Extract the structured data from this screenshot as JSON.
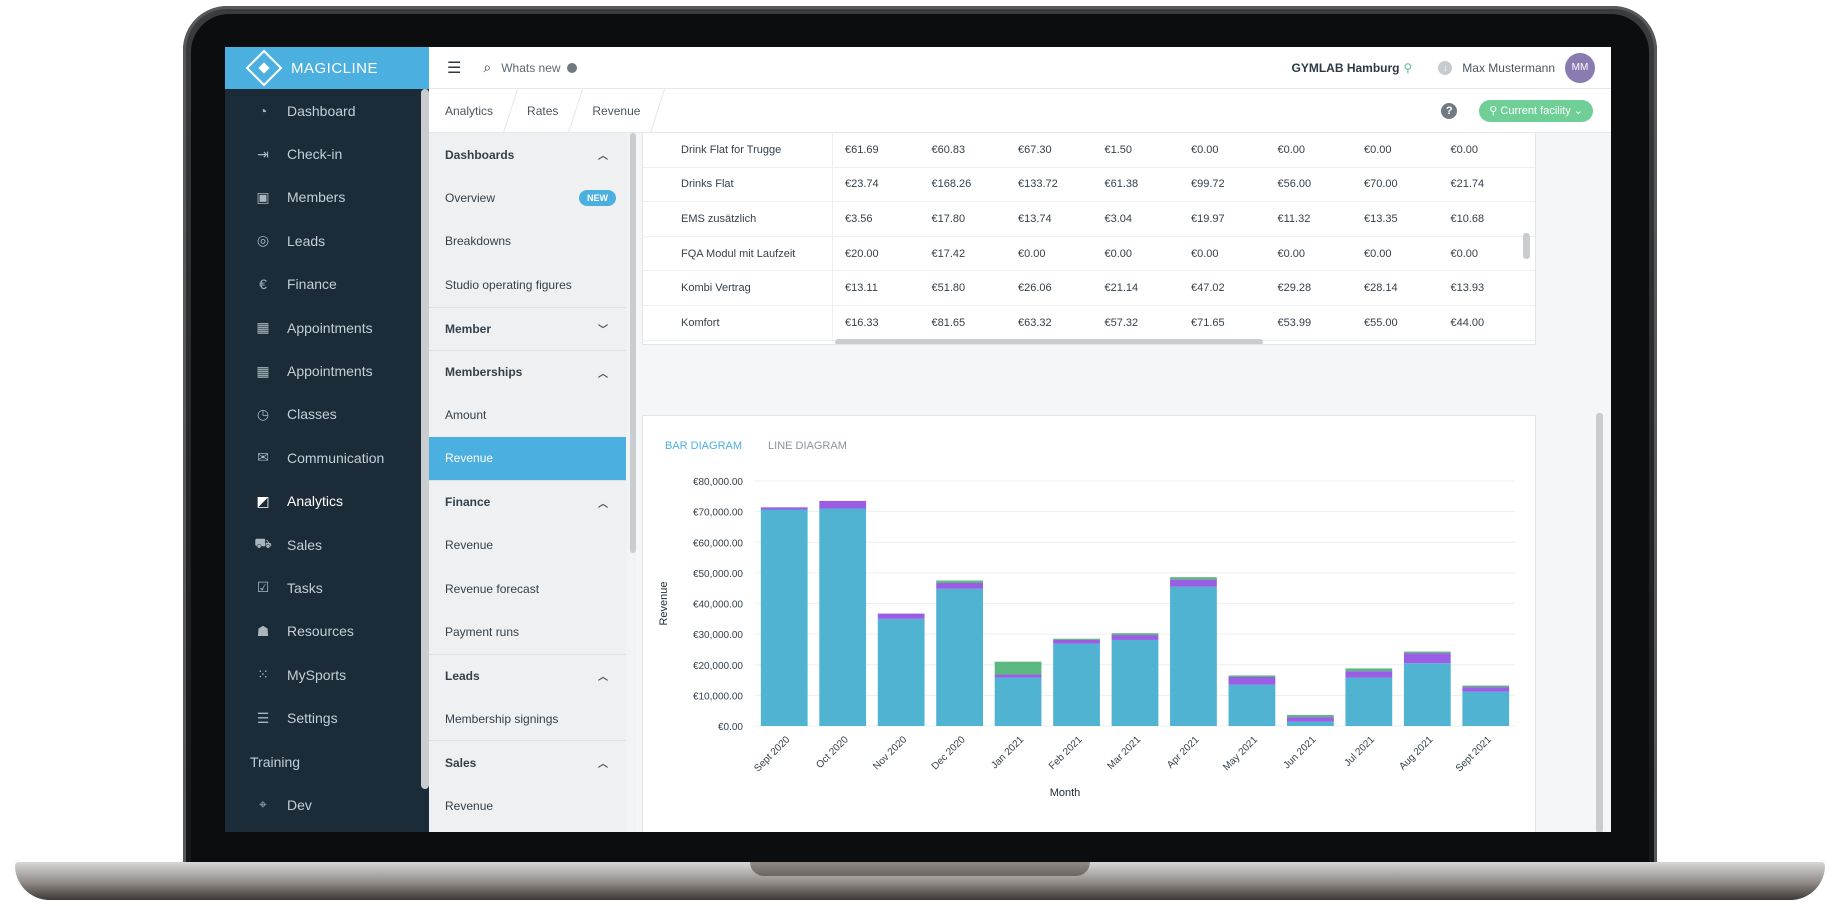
{
  "app": {
    "brand": "MAGICLINE"
  },
  "sidebar": {
    "items": [
      {
        "label": "Dashboard",
        "icon": "dashboard-icon",
        "glyph": "◔"
      },
      {
        "label": "Check-in",
        "icon": "checkin-icon",
        "glyph": "⇥"
      },
      {
        "label": "Members",
        "icon": "members-icon",
        "glyph": "▣"
      },
      {
        "label": "Leads",
        "icon": "leads-icon",
        "glyph": "◎"
      },
      {
        "label": "Finance",
        "icon": "finance-icon",
        "glyph": "€"
      },
      {
        "label": "Appointments",
        "icon": "calendar-icon",
        "glyph": "▦"
      },
      {
        "label": "Appointments",
        "icon": "calendar-icon",
        "glyph": "▦"
      },
      {
        "label": "Classes",
        "icon": "stopwatch-icon",
        "glyph": "◷"
      },
      {
        "label": "Communication",
        "icon": "chat-icon",
        "glyph": "✉"
      },
      {
        "label": "Analytics",
        "icon": "chart-icon",
        "glyph": "◩"
      },
      {
        "label": "Sales",
        "icon": "cart-icon",
        "glyph": "⛟"
      },
      {
        "label": "Tasks",
        "icon": "checkbox-icon",
        "glyph": "☑"
      },
      {
        "label": "Resources",
        "icon": "people-icon",
        "glyph": "☗"
      },
      {
        "label": "MySports",
        "icon": "grid-icon",
        "glyph": "⁙"
      },
      {
        "label": "Settings",
        "icon": "sliders-icon",
        "glyph": "☰"
      },
      {
        "label": "Training",
        "icon": "",
        "glyph": ""
      },
      {
        "label": "Dev",
        "icon": "crosshair-icon",
        "glyph": "⌖"
      }
    ],
    "active_index": 9
  },
  "topbar": {
    "search_label": "Whats new",
    "facility": "GYMLAB Hamburg",
    "user": "Max Mustermann",
    "avatar_initials": "MM"
  },
  "breadcrumb": {
    "items": [
      "Analytics",
      "Rates",
      "Revenue"
    ],
    "facility_button": "Current facility"
  },
  "subnav": {
    "groups": [
      {
        "title": "Dashboards",
        "open": true,
        "items": [
          {
            "label": "Overview",
            "badge": "NEW"
          },
          {
            "label": "Breakdowns"
          },
          {
            "label": "Studio operating figures"
          }
        ]
      },
      {
        "title": "Member",
        "open": false,
        "items": []
      },
      {
        "title": "Memberships",
        "open": true,
        "items": [
          {
            "label": "Amount"
          },
          {
            "label": "Revenue",
            "active": true
          }
        ]
      },
      {
        "title": "Finance",
        "open": true,
        "items": [
          {
            "label": "Revenue"
          },
          {
            "label": "Revenue forecast"
          },
          {
            "label": "Payment runs"
          }
        ]
      },
      {
        "title": "Leads",
        "open": true,
        "items": [
          {
            "label": "Membership signings"
          }
        ]
      },
      {
        "title": "Sales",
        "open": true,
        "items": [
          {
            "label": "Revenue"
          }
        ]
      }
    ]
  },
  "table": {
    "rows": [
      {
        "name": "Drink Flat for Trugge",
        "values": [
          "€61.69",
          "€60.83",
          "€67.30",
          "€1.50",
          "€0.00",
          "€0.00",
          "€0.00",
          "€0.00"
        ]
      },
      {
        "name": "Drinks Flat",
        "values": [
          "€23.74",
          "€168.26",
          "€133.72",
          "€61.38",
          "€99.72",
          "€56.00",
          "€70.00",
          "€21.74"
        ]
      },
      {
        "name": "EMS zusätzlich",
        "values": [
          "€3.56",
          "€17.80",
          "€13.74",
          "€3.04",
          "€19.97",
          "€11.32",
          "€13.35",
          "€10.68"
        ]
      },
      {
        "name": "FQA Modul mit Laufzeit",
        "values": [
          "€20.00",
          "€17.42",
          "€0.00",
          "€0.00",
          "€0.00",
          "€0.00",
          "€0.00",
          "€0.00"
        ]
      },
      {
        "name": "Kombi Vertrag",
        "values": [
          "€13.11",
          "€51.80",
          "€26.06",
          "€21.14",
          "€47.02",
          "€29.28",
          "€28.14",
          "€13.93"
        ]
      },
      {
        "name": "Komfort",
        "values": [
          "€16.33",
          "€81.65",
          "€63.32",
          "€57.32",
          "€71.65",
          "€53.99",
          "€55.00",
          "€44.00"
        ]
      }
    ]
  },
  "chart_tabs": [
    "BAR DIAGRAM",
    "LINE DIAGRAM"
  ],
  "chart_data": {
    "type": "bar",
    "stacked": true,
    "xlabel": "Month",
    "ylabel": "Revenue",
    "ylim": [
      0,
      80000
    ],
    "yticks": [
      "€0.00",
      "€10,000.00",
      "€20,000.00",
      "€30,000.00",
      "€40,000.00",
      "€50,000.00",
      "€60,000.00",
      "€70,000.00",
      "€80,000.00"
    ],
    "categories": [
      "Sept 2020",
      "Oct 2020",
      "Nov 2020",
      "Dec 2020",
      "Jan 2021",
      "Feb 2021",
      "Mar 2021",
      "Apr 2021",
      "May 2021",
      "Jun 2021",
      "Jul 2021",
      "Aug 2021",
      "Sept 2021"
    ],
    "series": [
      {
        "color": "#4fb3d1",
        "values": [
          70700,
          71000,
          35000,
          44800,
          15800,
          26900,
          28100,
          45500,
          13500,
          1400,
          15800,
          20500,
          11200
        ]
      },
      {
        "color": "#9b5de5",
        "values": [
          700,
          2500,
          1700,
          1900,
          1000,
          1200,
          1600,
          2300,
          2500,
          1500,
          2100,
          3300,
          1500
        ]
      },
      {
        "color": "#5bb87e",
        "values": [
          0,
          0,
          0,
          800,
          4200,
          400,
          600,
          800,
          500,
          700,
          900,
          500,
          500
        ]
      }
    ],
    "grid": true
  }
}
